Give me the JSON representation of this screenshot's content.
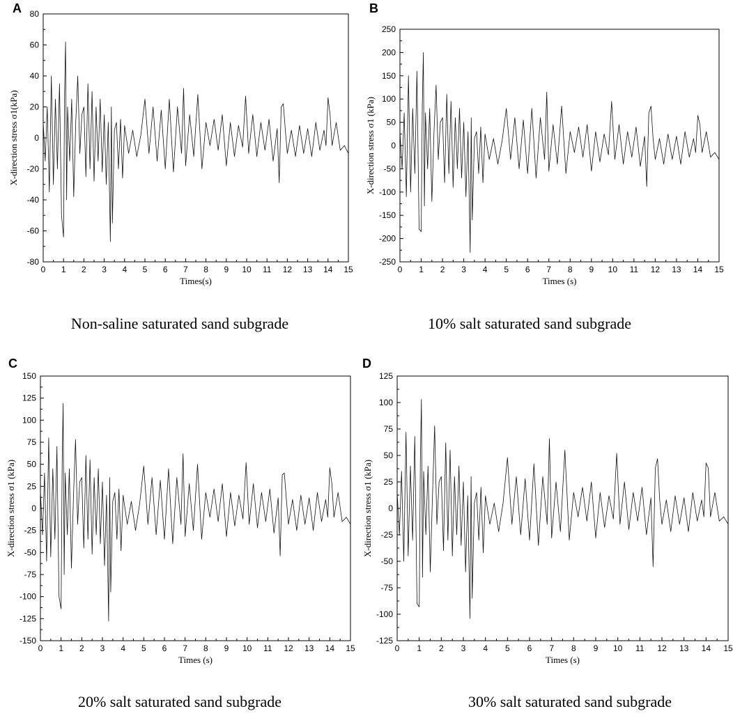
{
  "chart_data": [
    {
      "panel": "A",
      "type": "line",
      "caption": "Non-saline saturated sand subgrade",
      "xlabel": "Times(s)",
      "ylabel": "X-direction stress σ1(kPa)",
      "xlim": [
        0,
        15
      ],
      "ylim": [
        -80,
        80
      ],
      "xticks": [
        0,
        1,
        2,
        3,
        4,
        5,
        6,
        7,
        8,
        9,
        10,
        11,
        12,
        13,
        14,
        15
      ],
      "yticks": [
        -80,
        -60,
        -40,
        -20,
        0,
        20,
        40,
        60,
        80
      ],
      "grid": false,
      "series": [
        {
          "x": [
            0,
            0.1,
            0.2,
            0.3,
            0.4,
            0.5,
            0.6,
            0.7,
            0.8,
            0.9,
            1.0,
            1.05,
            1.1,
            1.15,
            1.2,
            1.3,
            1.4,
            1.5,
            1.6,
            1.7,
            1.8,
            1.9,
            2.0,
            2.1,
            2.2,
            2.3,
            2.4,
            2.5,
            2.6,
            2.7,
            2.8,
            2.9,
            3.0,
            3.1,
            3.2,
            3.3,
            3.35,
            3.4,
            3.5,
            3.6,
            3.7,
            3.8,
            3.9,
            4.0,
            4.2,
            4.4,
            4.6,
            4.8,
            5.0,
            5.2,
            5.4,
            5.6,
            5.8,
            6.0,
            6.2,
            6.4,
            6.6,
            6.8,
            6.9,
            7.0,
            7.2,
            7.4,
            7.6,
            7.8,
            8.0,
            8.2,
            8.4,
            8.6,
            8.8,
            9.0,
            9.2,
            9.4,
            9.6,
            9.8,
            9.95,
            10.1,
            10.3,
            10.5,
            10.7,
            10.9,
            11.1,
            11.3,
            11.5,
            11.6,
            11.7,
            11.8,
            11.9,
            12.0,
            12.2,
            12.4,
            12.6,
            12.8,
            13.0,
            13.2,
            13.4,
            13.6,
            13.8,
            13.9,
            14.0,
            14.1,
            14.2,
            14.4,
            14.6,
            14.8,
            15.0
          ],
          "y": [
            10,
            -15,
            20,
            -35,
            40,
            -30,
            25,
            -20,
            35,
            -50,
            -64,
            30,
            62,
            -40,
            20,
            -15,
            25,
            -38,
            10,
            40,
            -10,
            15,
            20,
            -25,
            35,
            -20,
            30,
            -28,
            20,
            -15,
            25,
            -22,
            15,
            -30,
            10,
            -67,
            20,
            -55,
            5,
            10,
            -20,
            12,
            -26,
            8,
            -10,
            5,
            -12,
            2,
            25,
            -10,
            20,
            -15,
            18,
            -20,
            25,
            -22,
            20,
            -10,
            32,
            -18,
            15,
            -12,
            28,
            -20,
            10,
            -5,
            12,
            -8,
            15,
            -18,
            10,
            -12,
            8,
            -6,
            27,
            -10,
            15,
            -12,
            10,
            -8,
            12,
            -15,
            6,
            -29,
            20,
            22,
            5,
            -10,
            5,
            -12,
            8,
            -10,
            6,
            -12,
            10,
            -8,
            5,
            -5,
            26,
            15,
            -5,
            10,
            -8,
            -5,
            -10
          ]
        }
      ]
    },
    {
      "panel": "B",
      "type": "line",
      "caption": "10% salt saturated sand subgrade",
      "xlabel": "Times (s)",
      "ylabel": "X-direction stress σ1 (kPa)",
      "xlim": [
        0,
        15
      ],
      "ylim": [
        -250,
        250
      ],
      "xticks": [
        0,
        1,
        2,
        3,
        4,
        5,
        6,
        7,
        8,
        9,
        10,
        11,
        12,
        13,
        14,
        15
      ],
      "yticks": [
        -250,
        -200,
        -150,
        -100,
        -50,
        0,
        50,
        100,
        150,
        200,
        250
      ],
      "grid": false,
      "series": [
        {
          "x": [
            0,
            0.1,
            0.2,
            0.3,
            0.4,
            0.5,
            0.6,
            0.7,
            0.8,
            0.9,
            1.0,
            1.05,
            1.1,
            1.15,
            1.2,
            1.3,
            1.4,
            1.5,
            1.6,
            1.7,
            1.8,
            1.9,
            2.0,
            2.1,
            2.2,
            2.3,
            2.4,
            2.5,
            2.6,
            2.7,
            2.8,
            2.9,
            3.0,
            3.1,
            3.2,
            3.3,
            3.35,
            3.4,
            3.5,
            3.6,
            3.7,
            3.8,
            3.9,
            4.0,
            4.2,
            4.4,
            4.6,
            4.8,
            5.0,
            5.2,
            5.4,
            5.6,
            5.8,
            6.0,
            6.2,
            6.4,
            6.6,
            6.8,
            6.9,
            7.0,
            7.2,
            7.4,
            7.6,
            7.8,
            8.0,
            8.2,
            8.4,
            8.6,
            8.8,
            9.0,
            9.2,
            9.4,
            9.6,
            9.8,
            9.95,
            10.1,
            10.3,
            10.5,
            10.7,
            10.9,
            11.1,
            11.3,
            11.5,
            11.6,
            11.7,
            11.8,
            11.9,
            12.0,
            12.2,
            12.4,
            12.6,
            12.8,
            13.0,
            13.2,
            13.4,
            13.6,
            13.8,
            13.9,
            14.0,
            14.1,
            14.2,
            14.4,
            14.6,
            14.8,
            15.0
          ],
          "y": [
            30,
            -50,
            70,
            -110,
            150,
            -100,
            80,
            -60,
            160,
            -180,
            -185,
            90,
            200,
            -130,
            70,
            -50,
            80,
            -120,
            30,
            130,
            -30,
            50,
            60,
            -80,
            110,
            -60,
            95,
            -90,
            60,
            -50,
            80,
            -70,
            50,
            -110,
            30,
            -230,
            60,
            -160,
            15,
            30,
            -60,
            40,
            -80,
            25,
            -30,
            15,
            -40,
            10,
            80,
            -30,
            60,
            -50,
            55,
            -60,
            80,
            -70,
            60,
            -30,
            115,
            -55,
            45,
            -40,
            85,
            -60,
            30,
            -15,
            40,
            -25,
            45,
            -55,
            30,
            -35,
            25,
            -20,
            95,
            -30,
            45,
            -40,
            30,
            -25,
            40,
            -45,
            20,
            -88,
            70,
            85,
            15,
            -30,
            15,
            -40,
            25,
            -30,
            20,
            -40,
            30,
            -25,
            15,
            -15,
            65,
            45,
            -15,
            30,
            -25,
            -15,
            -30
          ]
        }
      ]
    },
    {
      "panel": "C",
      "type": "line",
      "caption": "20% salt saturated sand subgrade",
      "xlabel": "Times (s)",
      "ylabel": "X-direction stress σ1 (kPa)",
      "xlim": [
        0,
        15
      ],
      "ylim": [
        -150,
        150
      ],
      "xticks": [
        0,
        1,
        2,
        3,
        4,
        5,
        6,
        7,
        8,
        9,
        10,
        11,
        12,
        13,
        14,
        15
      ],
      "yticks": [
        -150,
        -125,
        -100,
        -75,
        -50,
        -25,
        0,
        25,
        50,
        75,
        100,
        125,
        150
      ],
      "grid": false,
      "series": [
        {
          "x": [
            0,
            0.1,
            0.2,
            0.3,
            0.4,
            0.5,
            0.6,
            0.7,
            0.8,
            0.9,
            1.0,
            1.05,
            1.1,
            1.15,
            1.2,
            1.3,
            1.4,
            1.5,
            1.6,
            1.7,
            1.8,
            1.9,
            2.0,
            2.1,
            2.2,
            2.3,
            2.4,
            2.5,
            2.6,
            2.7,
            2.8,
            2.9,
            3.0,
            3.1,
            3.2,
            3.3,
            3.35,
            3.4,
            3.5,
            3.6,
            3.7,
            3.8,
            3.9,
            4.0,
            4.2,
            4.4,
            4.6,
            4.8,
            5.0,
            5.2,
            5.4,
            5.6,
            5.8,
            6.0,
            6.2,
            6.4,
            6.6,
            6.8,
            6.9,
            7.0,
            7.2,
            7.4,
            7.6,
            7.8,
            8.0,
            8.2,
            8.4,
            8.6,
            8.8,
            9.0,
            9.2,
            9.4,
            9.6,
            9.8,
            9.95,
            10.1,
            10.3,
            10.5,
            10.7,
            10.9,
            11.1,
            11.3,
            11.5,
            11.6,
            11.7,
            11.8,
            11.9,
            12.0,
            12.2,
            12.4,
            12.6,
            12.8,
            13.0,
            13.2,
            13.4,
            13.6,
            13.8,
            13.9,
            14.0,
            14.1,
            14.2,
            14.4,
            14.6,
            14.8,
            15.0
          ],
          "y": [
            20,
            -30,
            40,
            -60,
            80,
            -55,
            45,
            -35,
            70,
            -100,
            -114,
            50,
            119,
            -75,
            40,
            -30,
            45,
            -68,
            15,
            78,
            -18,
            30,
            35,
            -45,
            60,
            -35,
            55,
            -52,
            35,
            -30,
            45,
            -40,
            30,
            -65,
            15,
            -128,
            35,
            -95,
            8,
            18,
            -35,
            22,
            -48,
            15,
            -18,
            8,
            -25,
            5,
            48,
            -18,
            35,
            -30,
            32,
            -35,
            45,
            -40,
            35,
            -18,
            62,
            -32,
            28,
            -25,
            50,
            -35,
            18,
            -10,
            22,
            -15,
            28,
            -32,
            18,
            -20,
            15,
            -12,
            52,
            -18,
            28,
            -22,
            18,
            -15,
            22,
            -28,
            12,
            -54,
            38,
            40,
            10,
            -18,
            10,
            -25,
            15,
            -18,
            12,
            -25,
            18,
            -15,
            10,
            -10,
            46,
            28,
            -10,
            18,
            -15,
            -10,
            -18
          ]
        }
      ]
    },
    {
      "panel": "D",
      "type": "line",
      "caption": "30% salt saturated sand subgrade",
      "xlabel": "Times (s)",
      "ylabel": "X-direction stress σ1 (kPa)",
      "xlim": [
        0,
        15
      ],
      "ylim": [
        -125,
        125
      ],
      "xticks": [
        0,
        1,
        2,
        3,
        4,
        5,
        6,
        7,
        8,
        9,
        10,
        11,
        12,
        13,
        14,
        15
      ],
      "yticks": [
        -125,
        -100,
        -75,
        -50,
        -25,
        0,
        25,
        50,
        75,
        100,
        125
      ],
      "grid": false,
      "series": [
        {
          "x": [
            0,
            0.1,
            0.2,
            0.3,
            0.4,
            0.5,
            0.6,
            0.7,
            0.8,
            0.9,
            1.0,
            1.05,
            1.1,
            1.15,
            1.2,
            1.3,
            1.4,
            1.5,
            1.6,
            1.7,
            1.8,
            1.9,
            2.0,
            2.1,
            2.2,
            2.3,
            2.4,
            2.5,
            2.6,
            2.7,
            2.8,
            2.9,
            3.0,
            3.1,
            3.2,
            3.3,
            3.35,
            3.4,
            3.5,
            3.6,
            3.7,
            3.8,
            3.9,
            4.0,
            4.2,
            4.4,
            4.6,
            4.8,
            5.0,
            5.2,
            5.4,
            5.6,
            5.8,
            6.0,
            6.2,
            6.4,
            6.6,
            6.8,
            6.9,
            7.0,
            7.2,
            7.4,
            7.6,
            7.8,
            8.0,
            8.2,
            8.4,
            8.6,
            8.8,
            9.0,
            9.2,
            9.4,
            9.6,
            9.8,
            9.95,
            10.1,
            10.3,
            10.5,
            10.7,
            10.9,
            11.1,
            11.3,
            11.5,
            11.6,
            11.7,
            11.8,
            11.9,
            12.0,
            12.2,
            12.4,
            12.6,
            12.8,
            13.0,
            13.2,
            13.4,
            13.6,
            13.8,
            13.9,
            14.0,
            14.1,
            14.2,
            14.4,
            14.6,
            14.8,
            15.0
          ],
          "y": [
            15,
            -25,
            35,
            -50,
            72,
            -45,
            40,
            -30,
            68,
            -90,
            -93,
            45,
            103,
            -65,
            35,
            -25,
            40,
            -60,
            12,
            78,
            -15,
            25,
            30,
            -40,
            62,
            -30,
            55,
            -45,
            30,
            -25,
            40,
            -35,
            25,
            -60,
            12,
            -104,
            30,
            -85,
            5,
            15,
            -30,
            20,
            -42,
            12,
            -15,
            5,
            -22,
            5,
            48,
            -15,
            30,
            -25,
            28,
            -30,
            42,
            -35,
            30,
            -15,
            66,
            -28,
            25,
            -22,
            55,
            -30,
            15,
            -8,
            20,
            -12,
            25,
            -28,
            15,
            -18,
            12,
            -10,
            52,
            -15,
            25,
            -20,
            15,
            -12,
            20,
            -25,
            10,
            -55,
            38,
            47,
            8,
            -15,
            8,
            -22,
            12,
            -15,
            10,
            -22,
            15,
            -12,
            8,
            -8,
            43,
            38,
            -8,
            15,
            -12,
            -8,
            -15
          ]
        }
      ]
    }
  ]
}
